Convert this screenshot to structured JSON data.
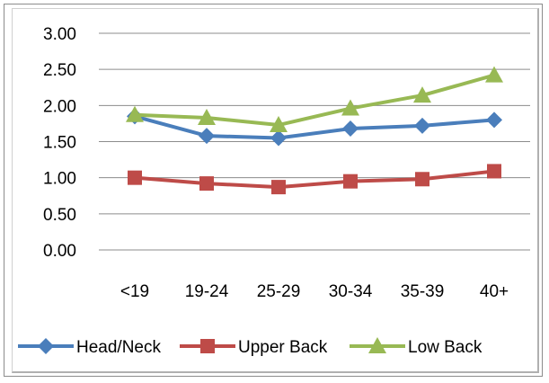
{
  "chart_data": {
    "type": "line",
    "categories": [
      "<19",
      "19-24",
      "25-29",
      "30-34",
      "35-39",
      "40+"
    ],
    "series": [
      {
        "name": "Head/Neck",
        "color": "#4a7ebb",
        "marker": "diamond",
        "values": [
          1.85,
          1.58,
          1.55,
          1.68,
          1.72,
          1.8
        ]
      },
      {
        "name": "Upper Back",
        "color": "#be4b48",
        "marker": "square",
        "values": [
          1.0,
          0.92,
          0.87,
          0.95,
          0.98,
          1.09
        ]
      },
      {
        "name": "Low Back",
        "color": "#98b954",
        "marker": "triangle",
        "values": [
          1.87,
          1.83,
          1.73,
          1.96,
          2.14,
          2.42
        ]
      }
    ],
    "yticks": [
      "0.00",
      "0.50",
      "1.00",
      "1.50",
      "2.00",
      "2.50",
      "3.00"
    ],
    "ylim": [
      0,
      3
    ],
    "grid": true,
    "legend": "bottom",
    "title": "",
    "xlabel": "",
    "ylabel": ""
  }
}
